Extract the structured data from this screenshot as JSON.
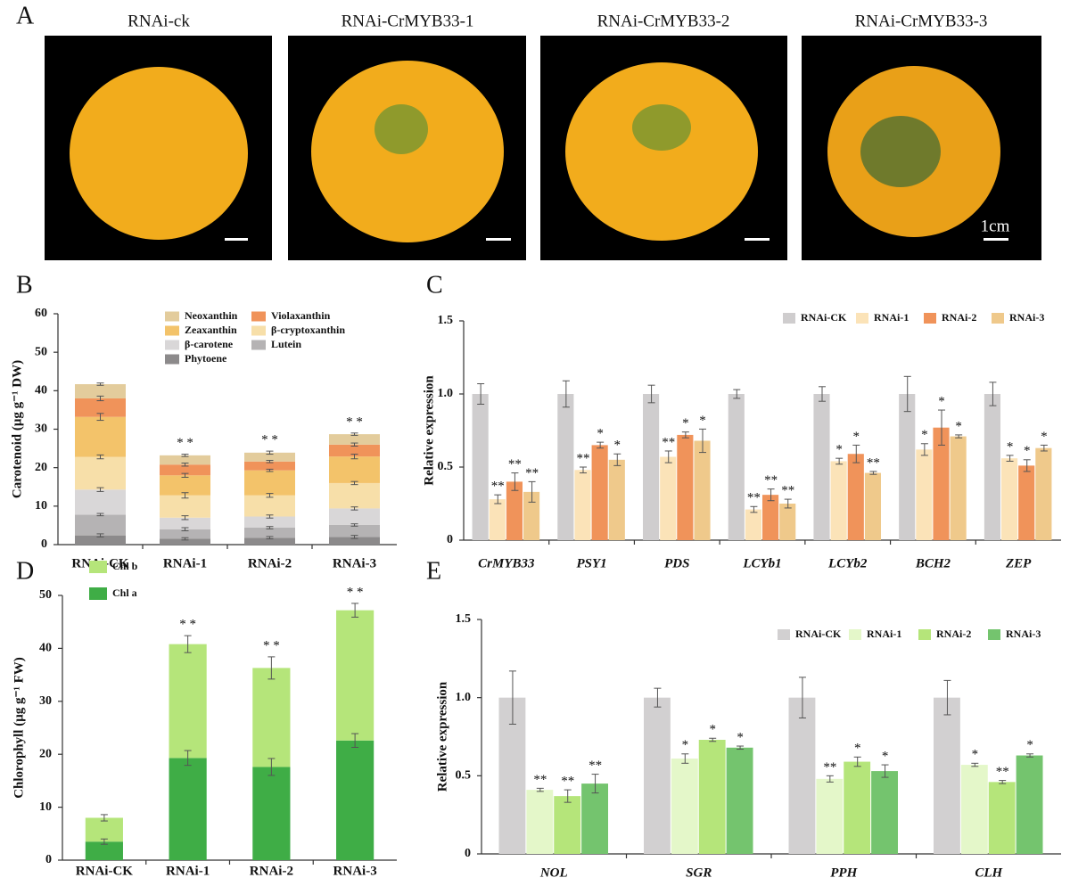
{
  "photos": {
    "label": "A",
    "captions": [
      "RNAi-ck",
      "RNAi-CrMYB33-1",
      "RNAi-CrMYB33-2",
      "RNAi-CrMYB33-3"
    ],
    "scale": "1cm"
  },
  "chart_data": [
    {
      "type": "stacked_bar",
      "panel_label": "B",
      "y_label": "Carotenoid (μg g⁻¹ DW)",
      "categories": [
        "RNAi-CK",
        "RNAi-1",
        "RNAi-2",
        "RNAi-3"
      ],
      "ylim": [
        0,
        60
      ],
      "yticks": [
        0,
        10,
        20,
        30,
        40,
        50,
        60
      ],
      "significance": [
        null,
        "* *",
        "* *",
        "* *"
      ],
      "series": [
        {
          "name": "Phytoene",
          "color": "#8c8a8b",
          "values": [
            2.4,
            1.5,
            1.8,
            2.0
          ],
          "errors": [
            0.4,
            0.3,
            0.3,
            0.4
          ]
        },
        {
          "name": "Lutein",
          "color": "#b5b3b4",
          "values": [
            5.4,
            2.5,
            2.6,
            3.1
          ],
          "errors": [
            0.3,
            0.4,
            0.3,
            0.3
          ]
        },
        {
          "name": "β-carotene",
          "color": "#d9d7d8",
          "values": [
            6.5,
            3.0,
            2.9,
            4.3
          ],
          "errors": [
            0.5,
            0.5,
            0.4,
            0.4
          ]
        },
        {
          "name": "β-cryptoxanthin",
          "color": "#f7dfa9",
          "values": [
            8.5,
            5.8,
            5.5,
            6.6
          ],
          "errors": [
            0.5,
            0.7,
            0.5,
            0.4
          ]
        },
        {
          "name": "Zeaxanthin",
          "color": "#f3c36a",
          "values": [
            10.4,
            5.2,
            6.5,
            6.9
          ],
          "errors": [
            0.9,
            0.5,
            0.3,
            0.6
          ]
        },
        {
          "name": "Violaxanthin",
          "color": "#f0935a",
          "values": [
            4.8,
            2.8,
            2.3,
            3.1
          ],
          "errors": [
            0.6,
            0.4,
            0.3,
            0.4
          ]
        },
        {
          "name": "Neoxanthin",
          "color": "#e3cc9c",
          "values": [
            3.7,
            2.4,
            2.3,
            2.7
          ],
          "errors": [
            0.3,
            0.3,
            0.4,
            0.3
          ]
        }
      ]
    },
    {
      "type": "grouped_bar",
      "panel_label": "C",
      "y_label": "Relative expression",
      "categories": [
        "CrMYB33",
        "PSY1",
        "PDS",
        "LCYb1",
        "LCYb2",
        "BCH2",
        "ZEP"
      ],
      "ylim": [
        0,
        1.5
      ],
      "yticks": [
        0,
        0.5,
        {
          "value": 1,
          "label": "1.0"
        },
        1.5
      ],
      "series": [
        {
          "name": "RNAi-CK",
          "color": "#cfcdce",
          "values": [
            1,
            1,
            1,
            1,
            1,
            1,
            1
          ],
          "errors": [
            0.07,
            0.09,
            0.06,
            0.03,
            0.05,
            0.12,
            0.08
          ]
        },
        {
          "name": "RNAi-1",
          "color": "#fbe3b8",
          "values": [
            0.28,
            0.48,
            0.57,
            0.21,
            0.54,
            0.62,
            0.56
          ],
          "errors": [
            0.03,
            0.02,
            0.04,
            0.02,
            0.02,
            0.04,
            0.02
          ],
          "significance": [
            "**",
            "**",
            "**",
            "**",
            "*",
            "*",
            "*"
          ]
        },
        {
          "name": "RNAi-2",
          "color": "#f0935a",
          "values": [
            0.4,
            0.65,
            0.72,
            0.31,
            0.59,
            0.77,
            0.51
          ],
          "errors": [
            0.06,
            0.02,
            0.02,
            0.04,
            0.06,
            0.12,
            0.04
          ],
          "significance": [
            "**",
            "*",
            "*",
            "**",
            "*",
            "*",
            "*"
          ]
        },
        {
          "name": "RNAi-3",
          "color": "#efc98b",
          "values": [
            0.33,
            0.55,
            0.68,
            0.25,
            0.46,
            0.71,
            0.63
          ],
          "errors": [
            0.07,
            0.04,
            0.08,
            0.03,
            0.01,
            0.01,
            0.02
          ],
          "significance": [
            "**",
            "*",
            "*",
            "**",
            "**",
            "*",
            "*"
          ]
        }
      ]
    },
    {
      "type": "stacked_bar",
      "panel_label": "D",
      "y_label": "Chlorophyll (μg g⁻¹ FW)",
      "categories": [
        "RNAi-CK",
        "RNAi-1",
        "RNAi-2",
        "RNAi-3"
      ],
      "ylim": [
        0,
        50
      ],
      "yticks": [
        0,
        10,
        20,
        30,
        40,
        50
      ],
      "significance": [
        null,
        "* *",
        "* *",
        "* *"
      ],
      "series": [
        {
          "name": "Chl a",
          "color": "#3fad46",
          "values": [
            3.5,
            19.3,
            17.6,
            22.6
          ],
          "errors": [
            0.5,
            1.4,
            1.6,
            1.3
          ]
        },
        {
          "name": "Chl b",
          "color": "#b5e57a",
          "values": [
            4.5,
            21.5,
            18.7,
            24.6
          ],
          "errors": [
            0.6,
            1.6,
            2.1,
            1.3
          ]
        }
      ]
    },
    {
      "type": "grouped_bar",
      "panel_label": "E",
      "y_label": "Relative expression",
      "categories": [
        "NOL",
        "SGR",
        "PPH",
        "CLH"
      ],
      "ylim": [
        0,
        1.5
      ],
      "yticks": [
        0,
        0.5,
        {
          "value": 1,
          "label": "1.0"
        },
        1.5
      ],
      "series": [
        {
          "name": "RNAi-CK",
          "color": "#d2d0d1",
          "values": [
            1,
            1,
            1,
            1
          ],
          "errors": [
            0.17,
            0.06,
            0.13,
            0.11
          ]
        },
        {
          "name": "RNAi-1",
          "color": "#e4f7c9",
          "values": [
            0.41,
            0.61,
            0.48,
            0.57
          ],
          "errors": [
            0.01,
            0.03,
            0.02,
            0.01
          ],
          "significance": [
            "**",
            "*",
            "**",
            "*"
          ]
        },
        {
          "name": "RNAi-2",
          "color": "#b5e57a",
          "values": [
            0.37,
            0.73,
            0.59,
            0.46
          ],
          "errors": [
            0.04,
            0.01,
            0.03,
            0.01
          ],
          "significance": [
            "**",
            "*",
            "*",
            "**"
          ]
        },
        {
          "name": "RNAi-3",
          "color": "#74c46e",
          "values": [
            0.45,
            0.68,
            0.53,
            0.63
          ],
          "errors": [
            0.06,
            0.01,
            0.04,
            0.01
          ],
          "significance": [
            "**",
            "*",
            "*",
            "*"
          ]
        }
      ]
    }
  ]
}
